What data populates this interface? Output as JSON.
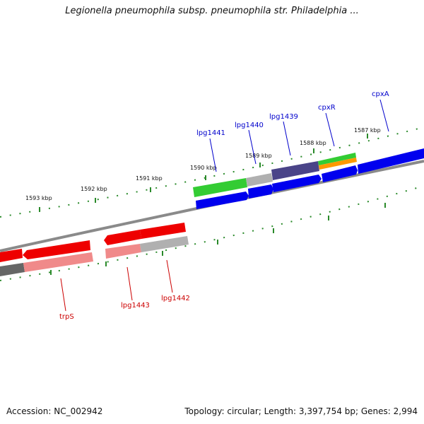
{
  "title": "Legionella pneumophila subsp. pneumophila str. Philadelphia ...",
  "footer": {
    "accession": "Accession: NC_002942",
    "summary": "Topology: circular; Length: 3,397,754 bp; Genes: 2,994"
  },
  "scale_labels": [
    "1593 kbp",
    "1592 kbp",
    "1591 kbp",
    "1590 kbp",
    "1589 kbp",
    "1588 kbp",
    "1587 kbp"
  ],
  "genes_forward": [
    "lpg1441",
    "lpg1440",
    "lpg1439",
    "cpxR",
    "cpxA"
  ],
  "genes_reverse": [
    "trpS",
    "lpg1443",
    "lpg1442"
  ],
  "colors": {
    "backbone": "#8a8a8a",
    "tick": "#2a8a2a",
    "forward_label": "#0000cc",
    "reverse_label": "#cc0000",
    "gene_forward": "#0000ee",
    "gene_reverse": "#ee0000",
    "cds_green": "#33cc33",
    "cds_orange": "#ff9900",
    "cds_purple": "#4a4488",
    "cds_gray": "#b0b0b0",
    "cds_pink": "#f08a8a"
  }
}
